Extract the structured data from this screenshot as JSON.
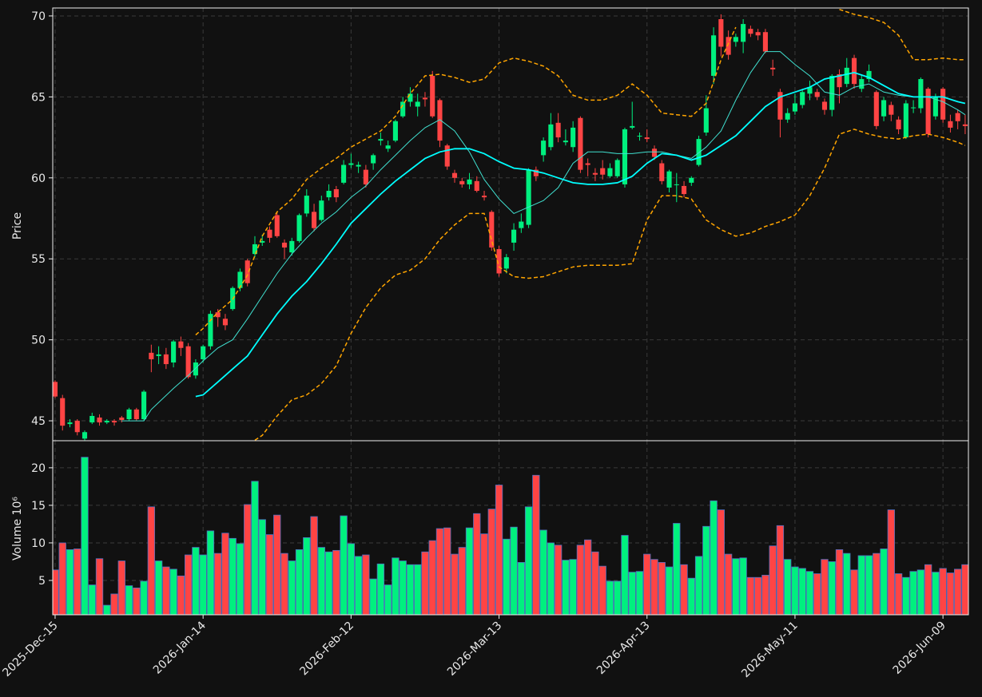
{
  "chart_data": [
    {
      "type": "candlestick",
      "y_label": "Price",
      "up_color": "#00f07f",
      "down_color": "#ff4444",
      "xlim": [
        -0.32,
        123.44
      ],
      "ylim": [
        43.77,
        70.49
      ],
      "yticks": [
        45,
        50,
        55,
        60,
        65,
        70
      ],
      "grid": true,
      "open": [
        47.4,
        46.4,
        44.8,
        45.0,
        43.9,
        44.9,
        45.2,
        44.9,
        45.0,
        45.2,
        45.1,
        45.7,
        45.1,
        49.2,
        49.0,
        49.1,
        48.6,
        49.9,
        49.6,
        47.8,
        48.8,
        49.6,
        51.7,
        51.3,
        51.9,
        53.2,
        54.9,
        55.3,
        56.0,
        56.8,
        57.7,
        56.0,
        55.4,
        56.1,
        57.8,
        57.9,
        57.4,
        58.8,
        59.3,
        59.7,
        60.8,
        60.7,
        60.5,
        60.9,
        62.3,
        61.8,
        62.3,
        63.8,
        64.7,
        64.4,
        64.95,
        66.3,
        64.8,
        62.0,
        60.3,
        59.8,
        59.6,
        59.8,
        58.9,
        57.9,
        55.6,
        54.4,
        56.0,
        56.9,
        57.1,
        60.5,
        61.4,
        61.9,
        63.4,
        62.2,
        61.9,
        63.7,
        60.9,
        60.3,
        60.6,
        60.1,
        60.1,
        59.6,
        63.1,
        62.55,
        62.5,
        61.8,
        60.9,
        59.4,
        59.55,
        59.5,
        59.7,
        60.8,
        62.8,
        66.3,
        69.8,
        68.7,
        68.4,
        68.4,
        69.2,
        69.0,
        69.0,
        66.8,
        65.3,
        63.6,
        64.1,
        64.5,
        65.2,
        65.3,
        64.7,
        64.2,
        66.4,
        65.8,
        67.4,
        65.5,
        66.1,
        65.3,
        63.8,
        64.5,
        63.6,
        62.5,
        64.3,
        64.3,
        65.5,
        63.8,
        65.5,
        63.5,
        64.0,
        63.3
      ],
      "high": [
        47.5,
        46.6,
        45.1,
        45.1,
        44.4,
        45.5,
        45.4,
        45.1,
        45.1,
        45.3,
        45.8,
        45.8,
        46.9,
        49.7,
        49.6,
        49.5,
        50.0,
        50.2,
        49.8,
        48.8,
        49.7,
        51.8,
        51.9,
        51.6,
        53.3,
        54.4,
        55.0,
        56.4,
        56.5,
        57.0,
        57.9,
        56.2,
        56.3,
        57.8,
        59.3,
        58.4,
        58.9,
        59.6,
        59.5,
        61.1,
        61.5,
        61.0,
        60.8,
        61.5,
        62.8,
        62.3,
        63.6,
        65.0,
        65.6,
        65.2,
        65.3,
        66.6,
        64.9,
        62.1,
        60.5,
        60.0,
        60.3,
        60.1,
        59.2,
        58.0,
        55.8,
        55.3,
        57.2,
        57.8,
        60.6,
        60.7,
        62.5,
        64.0,
        64.0,
        63.0,
        63.5,
        63.8,
        61.2,
        60.6,
        61.1,
        60.9,
        61.2,
        63.1,
        64.7,
        62.8,
        63.0,
        62.0,
        61.1,
        60.5,
        60.3,
        59.8,
        60.1,
        62.6,
        65.1,
        69.3,
        70.1,
        69.1,
        68.9,
        69.8,
        69.4,
        69.2,
        69.2,
        67.3,
        65.5,
        64.3,
        65.2,
        65.5,
        66.0,
        65.5,
        64.9,
        66.4,
        66.7,
        67.4,
        67.6,
        66.4,
        67.0,
        65.4,
        65.0,
        64.7,
        63.8,
        64.8,
        64.8,
        66.2,
        65.6,
        65.2,
        65.6,
        63.9,
        64.2,
        63.9
      ],
      "low": [
        46.4,
        44.4,
        44.6,
        44.1,
        43.8,
        44.8,
        44.7,
        44.8,
        44.7,
        44.9,
        45.0,
        45.0,
        45.0,
        48.0,
        48.5,
        48.2,
        48.3,
        49.0,
        47.6,
        47.6,
        48.6,
        49.4,
        50.8,
        50.6,
        51.8,
        53.0,
        53.3,
        55.1,
        55.8,
        56.0,
        56.3,
        55.0,
        55.2,
        56.0,
        57.6,
        56.7,
        57.3,
        58.6,
        58.5,
        59.6,
        60.6,
        60.3,
        59.4,
        60.5,
        62.0,
        61.6,
        62.2,
        63.7,
        64.4,
        63.8,
        64.4,
        63.7,
        61.9,
        60.5,
        59.7,
        59.4,
        59.3,
        59.1,
        58.6,
        55.5,
        53.9,
        54.1,
        55.5,
        56.6,
        56.9,
        59.8,
        61.0,
        61.7,
        62.2,
        62.0,
        61.6,
        60.3,
        60.1,
        59.8,
        59.9,
        60.0,
        60.0,
        59.4,
        63.0,
        62.3,
        62.2,
        61.1,
        59.6,
        59.1,
        58.5,
        58.8,
        59.5,
        60.7,
        62.6,
        65.8,
        67.5,
        67.3,
        68.1,
        67.7,
        68.7,
        68.5,
        67.7,
        66.3,
        62.5,
        63.4,
        63.9,
        64.3,
        64.8,
        64.8,
        63.9,
        63.8,
        64.6,
        65.6,
        65.5,
        65.3,
        65.9,
        63.0,
        63.5,
        63.5,
        62.7,
        62.4,
        64.0,
        64.0,
        62.5,
        63.6,
        63.4,
        62.8,
        63.0,
        62.7
      ],
      "close": [
        46.5,
        44.7,
        44.9,
        44.3,
        44.3,
        45.3,
        44.9,
        45.0,
        44.9,
        45.05,
        45.7,
        45.1,
        46.8,
        48.8,
        49.1,
        48.5,
        49.9,
        49.5,
        47.7,
        48.6,
        49.6,
        51.6,
        51.4,
        50.9,
        53.2,
        54.2,
        53.5,
        55.9,
        56.1,
        56.3,
        56.4,
        55.7,
        56.1,
        57.7,
        58.9,
        56.9,
        58.6,
        59.2,
        58.8,
        60.8,
        60.9,
        60.8,
        59.6,
        61.4,
        62.4,
        62.0,
        63.5,
        64.7,
        65.2,
        64.7,
        64.85,
        63.8,
        62.3,
        60.7,
        60.0,
        59.6,
        59.9,
        59.2,
        58.8,
        55.7,
        54.1,
        55.1,
        56.8,
        57.3,
        60.5,
        60.1,
        62.3,
        63.3,
        62.5,
        62.3,
        63.1,
        60.5,
        60.8,
        60.2,
        60.2,
        60.6,
        61.1,
        63.0,
        63.2,
        62.6,
        62.4,
        61.3,
        59.8,
        60.4,
        59.6,
        59.0,
        60.0,
        62.4,
        64.3,
        68.8,
        68.1,
        67.6,
        68.7,
        69.5,
        68.9,
        68.8,
        67.8,
        66.7,
        63.6,
        64.0,
        64.6,
        65.3,
        65.6,
        65.0,
        64.2,
        66.3,
        65.6,
        66.8,
        65.8,
        66.1,
        66.6,
        63.2,
        64.8,
        63.9,
        63.0,
        64.6,
        64.35,
        66.1,
        62.7,
        65.0,
        63.6,
        63.1,
        63.5,
        63.2
      ],
      "overlays": [
        {
          "color": "#40e0d0",
          "width": 1,
          "dash": false,
          "x": [
            9,
            12,
            13,
            16,
            18,
            20,
            22,
            24,
            26,
            28,
            30,
            32,
            34,
            36,
            38,
            40,
            42,
            44,
            46,
            48,
            50,
            52,
            54,
            56,
            58,
            60,
            62,
            64,
            66,
            68,
            70,
            72,
            74,
            76,
            78,
            80,
            82,
            84,
            86,
            88,
            90,
            92,
            94,
            96,
            98,
            100,
            102,
            104,
            106,
            108,
            110,
            112,
            114,
            116,
            118,
            120,
            122,
            123
          ],
          "values": [
            45.0,
            45.0,
            45.7,
            47.0,
            47.8,
            48.7,
            49.5,
            50.0,
            51.3,
            52.7,
            54.1,
            55.3,
            56.3,
            57.2,
            57.9,
            58.8,
            59.5,
            60.5,
            61.4,
            62.3,
            63.1,
            63.6,
            62.9,
            61.6,
            59.9,
            58.7,
            57.8,
            58.2,
            58.6,
            59.4,
            60.9,
            61.6,
            61.6,
            61.5,
            61.5,
            61.6,
            61.6,
            61.4,
            61.2,
            61.9,
            62.9,
            64.8,
            66.5,
            67.8,
            67.8,
            67.0,
            66.3,
            65.3,
            65.1,
            65.6,
            65.8,
            65.3,
            65.1,
            65.0,
            65.0,
            64.7,
            64.2,
            63.9
          ]
        },
        {
          "color": "#00ffff",
          "width": 1.8,
          "dash": false,
          "x": [
            19,
            20,
            22,
            24,
            26,
            28,
            30,
            32,
            34,
            36,
            38,
            40,
            42,
            44,
            46,
            48,
            50,
            52,
            54,
            56,
            58,
            60,
            62,
            64,
            66,
            68,
            70,
            72,
            74,
            76,
            78,
            80,
            82,
            84,
            86,
            88,
            90,
            92,
            94,
            96,
            98,
            100,
            102,
            104,
            106,
            108,
            110,
            112,
            114,
            116,
            118,
            120,
            122,
            123
          ],
          "values": [
            46.5,
            46.6,
            47.4,
            48.2,
            49.0,
            50.3,
            51.6,
            52.7,
            53.6,
            54.7,
            55.9,
            57.2,
            58.1,
            59.0,
            59.8,
            60.5,
            61.2,
            61.6,
            61.8,
            61.8,
            61.5,
            61.0,
            60.6,
            60.5,
            60.3,
            60.0,
            59.7,
            59.6,
            59.6,
            59.7,
            60.1,
            60.9,
            61.5,
            61.4,
            61.1,
            61.4,
            62.0,
            62.6,
            63.5,
            64.4,
            65.0,
            65.3,
            65.6,
            66.1,
            66.3,
            66.5,
            66.2,
            65.7,
            65.2,
            65.0,
            65.0,
            65.0,
            64.7,
            64.6
          ]
        },
        {
          "color": "#ffa500",
          "width": 1.5,
          "dash": true,
          "x": [
            19,
            20,
            22,
            24,
            26,
            28,
            30,
            32,
            34,
            36,
            38,
            40,
            42,
            44,
            46,
            48,
            50,
            52,
            54,
            56,
            58,
            60,
            62,
            64,
            66,
            68,
            70,
            72,
            74,
            76,
            78,
            80,
            82,
            84,
            86,
            88,
            90,
            92,
            94,
            106,
            108,
            110,
            112,
            114,
            116,
            118,
            120,
            122,
            123
          ],
          "values": [
            50.3,
            50.7,
            51.7,
            52.5,
            54.0,
            56.4,
            57.9,
            58.7,
            59.9,
            60.6,
            61.2,
            61.9,
            62.4,
            62.9,
            63.8,
            65.2,
            66.3,
            66.4,
            66.2,
            65.9,
            66.1,
            67.1,
            67.4,
            67.2,
            66.9,
            66.3,
            65.1,
            64.8,
            64.8,
            65.1,
            65.8,
            65.1,
            64.0,
            63.9,
            63.8,
            64.6,
            67.3,
            69.3,
            null,
            70.4,
            70.1,
            69.9,
            69.6,
            68.8,
            67.3,
            67.3,
            67.4,
            67.3,
            67.3
          ]
        },
        {
          "color": "#ffa500",
          "width": 1.5,
          "dash": true,
          "x": [
            27,
            28,
            30,
            32,
            34,
            36,
            38,
            40,
            42,
            44,
            46,
            48,
            50,
            52,
            54,
            56,
            58,
            60,
            62,
            64,
            66,
            68,
            70,
            72,
            74,
            76,
            78,
            80,
            82,
            84,
            86,
            88,
            90,
            92,
            94,
            96,
            98,
            100,
            102,
            104,
            106,
            108,
            110,
            112,
            114,
            116,
            118,
            120,
            122,
            123
          ],
          "values": [
            43.8,
            44.1,
            45.3,
            46.3,
            46.6,
            47.3,
            48.4,
            50.4,
            52.0,
            53.2,
            54.0,
            54.3,
            55.0,
            56.2,
            57.1,
            57.8,
            57.8,
            54.5,
            53.9,
            53.8,
            53.9,
            54.2,
            54.5,
            54.6,
            54.6,
            54.6,
            54.7,
            57.4,
            58.9,
            58.9,
            58.7,
            57.4,
            56.8,
            56.4,
            56.6,
            57.0,
            57.3,
            57.7,
            58.9,
            60.6,
            62.7,
            63.0,
            62.7,
            62.5,
            62.4,
            62.6,
            62.7,
            62.5,
            62.2,
            62.0
          ]
        }
      ]
    },
    {
      "type": "bar",
      "y_label": "Volume  10⁶",
      "up_color": "#00f07f",
      "down_color": "#ff4444",
      "edge_color": "#4f6fc0",
      "xlim": [
        -0.32,
        123.44
      ],
      "ylim": [
        0.43,
        23.6
      ],
      "yticks": [
        5,
        10,
        15,
        20
      ],
      "grid": true,
      "xticks": [
        {
          "value": 0,
          "label": "2025-Dec-15"
        },
        {
          "value": 20,
          "label": "2026-Jan-14"
        },
        {
          "value": 40,
          "label": "2026-Feb-12"
        },
        {
          "value": 60,
          "label": "2026-Mar-13"
        },
        {
          "value": 80,
          "label": "2026-Apr-13"
        },
        {
          "value": 100,
          "label": "2026-May-11"
        },
        {
          "value": 120,
          "label": "2026-Jun-09"
        }
      ],
      "values": [
        6.4,
        10.0,
        9.1,
        9.2,
        21.4,
        4.4,
        7.9,
        1.7,
        3.2,
        7.6,
        4.3,
        4.0,
        4.9,
        14.8,
        7.6,
        6.8,
        6.5,
        5.6,
        8.4,
        9.4,
        8.4,
        11.6,
        8.6,
        11.3,
        10.6,
        9.9,
        15.1,
        18.2,
        13.1,
        11.1,
        13.7,
        8.6,
        7.6,
        9.1,
        10.7,
        13.5,
        9.4,
        8.8,
        9.0,
        13.6,
        9.9,
        8.2,
        8.4,
        5.2,
        7.2,
        4.4,
        8.0,
        7.6,
        7.1,
        7.1,
        8.8,
        10.3,
        11.9,
        12.0,
        8.5,
        9.4,
        12.0,
        13.9,
        11.2,
        14.5,
        17.7,
        10.5,
        12.1,
        7.4,
        14.8,
        19.0,
        11.7,
        10.0,
        9.7,
        7.7,
        7.8,
        9.7,
        10.4,
        8.8,
        6.9,
        4.9,
        4.9,
        11.0,
        6.1,
        6.2,
        8.5,
        7.8,
        7.4,
        6.8,
        12.6,
        7.1,
        5.3,
        8.2,
        12.2,
        15.6,
        14.4,
        8.5,
        7.9,
        8.0,
        5.4,
        5.4,
        5.7,
        9.6,
        12.3,
        7.8,
        6.8,
        6.6,
        6.2,
        5.9,
        7.8,
        7.5,
        9.1,
        8.6,
        6.4,
        8.3,
        8.3,
        8.6,
        9.2,
        14.4,
        5.9,
        5.4,
        6.2,
        6.4,
        7.1,
        6.1,
        6.6,
        6.0,
        6.5,
        7.1
      ]
    }
  ]
}
